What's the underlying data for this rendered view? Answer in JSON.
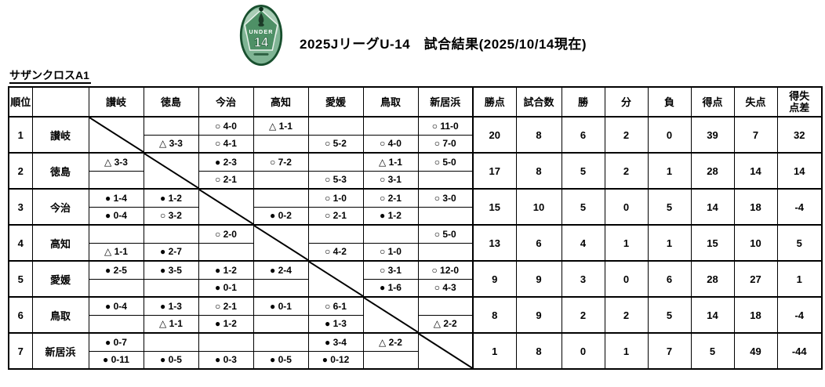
{
  "page": {
    "title_line": "2025JリーグU-14　試合結果(2025/10/14現在)"
  },
  "logo": {
    "upper_text": "UNDER",
    "number": "14"
  },
  "league": {
    "name": "サザンクロスA1",
    "rank_header": "順位",
    "opponents": [
      "讃岐",
      "徳島",
      "今治",
      "高知",
      "愛媛",
      "鳥取",
      "新居浜"
    ],
    "stat_headers": [
      "勝点",
      "試合数",
      "勝",
      "分",
      "負",
      "得点",
      "失点",
      "得失\n点差"
    ],
    "rows": [
      {
        "rank": "1",
        "team": "讃岐",
        "matches": [
          null,
          {
            "top": "",
            "bottom": "△ 3-3"
          },
          {
            "top": "○ 4-0",
            "bottom": "○ 4-1"
          },
          {
            "top": "△ 1-1",
            "bottom": ""
          },
          {
            "top": "",
            "bottom": "○ 5-2"
          },
          {
            "top": "",
            "bottom": "○ 4-0"
          },
          {
            "top": "○ 11-0",
            "bottom": "○ 7-0"
          }
        ],
        "stats": [
          "20",
          "8",
          "6",
          "2",
          "0",
          "39",
          "7",
          "32"
        ]
      },
      {
        "rank": "2",
        "team": "徳島",
        "matches": [
          {
            "top": "△ 3-3",
            "bottom": ""
          },
          null,
          {
            "top": "● 2-3",
            "bottom": "○ 2-1"
          },
          {
            "top": "○ 7-2",
            "bottom": ""
          },
          {
            "top": "",
            "bottom": "○ 5-3"
          },
          {
            "top": "△ 1-1",
            "bottom": "○ 3-1"
          },
          {
            "top": "○ 5-0",
            "bottom": ""
          }
        ],
        "stats": [
          "17",
          "8",
          "5",
          "2",
          "1",
          "28",
          "14",
          "14"
        ]
      },
      {
        "rank": "3",
        "team": "今治",
        "matches": [
          {
            "top": "● 1-4",
            "bottom": "● 0-4"
          },
          {
            "top": "● 1-2",
            "bottom": "○ 3-2"
          },
          null,
          {
            "top": "",
            "bottom": "● 0-2"
          },
          {
            "top": "○ 1-0",
            "bottom": "○ 2-1"
          },
          {
            "top": "○ 2-1",
            "bottom": "● 1-2"
          },
          {
            "top": "○ 3-0",
            "bottom": ""
          }
        ],
        "stats": [
          "15",
          "10",
          "5",
          "0",
          "5",
          "14",
          "18",
          "-4"
        ]
      },
      {
        "rank": "4",
        "team": "高知",
        "matches": [
          {
            "top": "",
            "bottom": "△ 1-1"
          },
          {
            "top": "",
            "bottom": "● 2-7"
          },
          {
            "top": "○ 2-0",
            "bottom": ""
          },
          null,
          {
            "top": "",
            "bottom": "○ 4-2"
          },
          {
            "top": "",
            "bottom": "○ 1-0"
          },
          {
            "top": "○ 5-0",
            "bottom": ""
          }
        ],
        "stats": [
          "13",
          "6",
          "4",
          "1",
          "1",
          "15",
          "10",
          "5"
        ]
      },
      {
        "rank": "5",
        "team": "愛媛",
        "matches": [
          {
            "top": "● 2-5",
            "bottom": ""
          },
          {
            "top": "● 3-5",
            "bottom": ""
          },
          {
            "top": "● 1-2",
            "bottom": "● 0-1"
          },
          {
            "top": "● 2-4",
            "bottom": ""
          },
          null,
          {
            "top": "○ 3-1",
            "bottom": "● 1-6"
          },
          {
            "top": "○ 12-0",
            "bottom": "○ 4-3"
          }
        ],
        "stats": [
          "9",
          "9",
          "3",
          "0",
          "6",
          "28",
          "27",
          "1"
        ]
      },
      {
        "rank": "6",
        "team": "鳥取",
        "matches": [
          {
            "top": "● 0-4",
            "bottom": ""
          },
          {
            "top": "● 1-3",
            "bottom": "△ 1-1"
          },
          {
            "top": "○ 2-1",
            "bottom": "● 1-2"
          },
          {
            "top": "● 0-1",
            "bottom": ""
          },
          {
            "top": "○ 6-1",
            "bottom": "● 1-3"
          },
          null,
          {
            "top": "",
            "bottom": "△ 2-2"
          }
        ],
        "stats": [
          "8",
          "9",
          "2",
          "2",
          "5",
          "14",
          "18",
          "-4"
        ]
      },
      {
        "rank": "7",
        "team": "新居浜",
        "matches": [
          {
            "top": "● 0-7",
            "bottom": "● 0-11"
          },
          {
            "top": "",
            "bottom": "● 0-5"
          },
          {
            "top": "",
            "bottom": "● 0-3"
          },
          {
            "top": "",
            "bottom": "● 0-5"
          },
          {
            "top": "● 3-4",
            "bottom": "● 0-12"
          },
          {
            "top": "△ 2-2",
            "bottom": ""
          },
          null
        ],
        "stats": [
          "1",
          "8",
          "0",
          "1",
          "7",
          "5",
          "49",
          "-44"
        ]
      }
    ]
  }
}
